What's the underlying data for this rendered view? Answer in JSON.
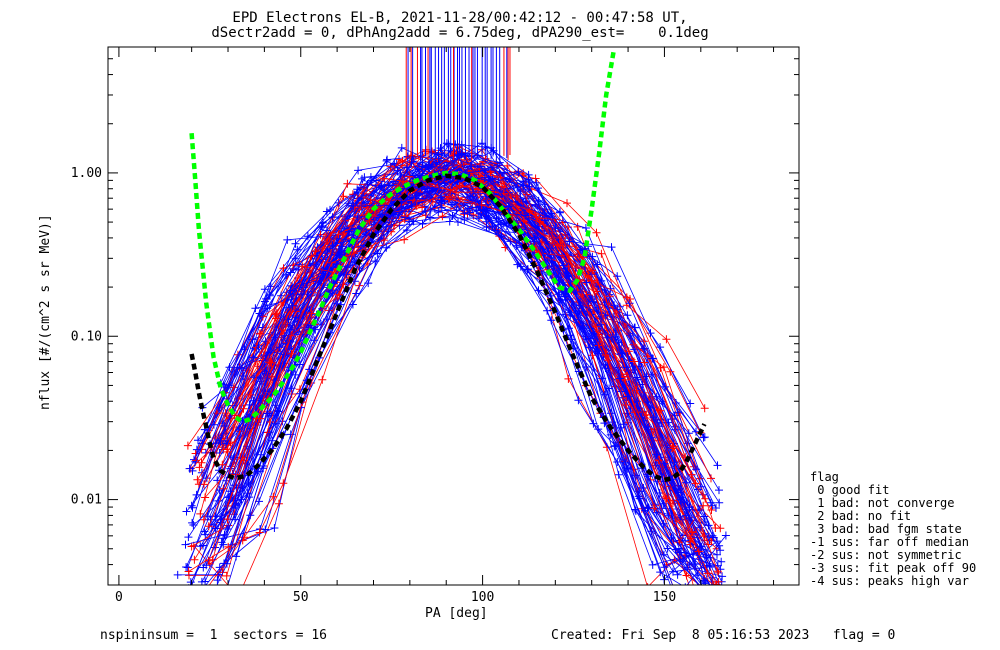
{
  "titles": {
    "line1": "EPD Electrons EL-B, 2021-11-28/00:42:12 - 00:47:58 UT,",
    "line2": "dSectr2add = 0, dPhAng2add = 6.75deg, dPA290_est=    0.1deg"
  },
  "footer": {
    "left": "nspininsum =  1  sectors = 16",
    "right": "Created: Fri Sep  8 05:16:53 2023   flag = 0"
  },
  "legend": {
    "title": "flag",
    "entries": [
      " 0 good fit",
      " 1 bad: not converge",
      " 2 bad: no fit",
      " 3 bad: bad fgm state",
      "-1 sus: far off median",
      "-2 sus: not symmetric",
      "-3 sus: fit peak off 90",
      "-4 sus: peaks high var"
    ]
  },
  "colors": {
    "blue": "#0000ff",
    "red": "#ff0000",
    "green": "#00ff00",
    "black": "#000000"
  },
  "chart_data": {
    "type": "line",
    "xlabel": "PA [deg]",
    "ylabel": "nflux [#/(cm^2 s sr MeV)]",
    "xlim": [
      -3,
      187
    ],
    "ylim": [
      0.003,
      5.9
    ],
    "yscale": "log",
    "x_ticks": [
      "0",
      "50",
      "100",
      "150"
    ],
    "y_ticks": [
      "0.01",
      "0.10",
      "1.00"
    ],
    "fit_curves": [
      {
        "color": "green",
        "style": "dashed-thick",
        "x": [
          20,
          21,
          22,
          24,
          26,
          28,
          30,
          32,
          34,
          36,
          38,
          40,
          42,
          44,
          46,
          48,
          50,
          52,
          55,
          58,
          62,
          66,
          70,
          74,
          78,
          82,
          86,
          90,
          94,
          98,
          102,
          106,
          110,
          114,
          118,
          121,
          124,
          126,
          128,
          130,
          132,
          134,
          136
        ],
        "y": [
          1.75,
          0.9,
          0.45,
          0.16,
          0.075,
          0.048,
          0.038,
          0.032,
          0.03,
          0.031,
          0.034,
          0.038,
          0.042,
          0.048,
          0.056,
          0.066,
          0.08,
          0.1,
          0.14,
          0.2,
          0.3,
          0.45,
          0.6,
          0.72,
          0.82,
          0.9,
          0.96,
          1.0,
          0.98,
          0.9,
          0.75,
          0.58,
          0.45,
          0.34,
          0.25,
          0.2,
          0.19,
          0.22,
          0.3,
          0.6,
          1.3,
          3.0,
          5.5
        ]
      },
      {
        "color": "black",
        "style": "dashed-thick",
        "x": [
          20,
          21,
          22,
          23,
          24,
          25,
          26,
          28,
          30,
          32,
          35,
          38,
          42,
          46,
          50,
          55,
          60,
          65,
          70,
          75,
          80,
          85,
          90,
          95,
          100,
          105,
          110,
          115,
          120,
          125,
          130,
          135,
          140,
          144,
          147,
          150,
          152,
          154,
          156,
          158,
          160,
          161
        ],
        "y": [
          0.078,
          0.06,
          0.045,
          0.035,
          0.028,
          0.022,
          0.018,
          0.015,
          0.014,
          0.0135,
          0.014,
          0.016,
          0.02,
          0.027,
          0.04,
          0.075,
          0.14,
          0.26,
          0.42,
          0.6,
          0.78,
          0.9,
          0.96,
          0.93,
          0.82,
          0.62,
          0.42,
          0.25,
          0.14,
          0.075,
          0.042,
          0.028,
          0.02,
          0.016,
          0.014,
          0.0132,
          0.0135,
          0.0145,
          0.017,
          0.021,
          0.026,
          0.029
        ]
      }
    ]
  }
}
